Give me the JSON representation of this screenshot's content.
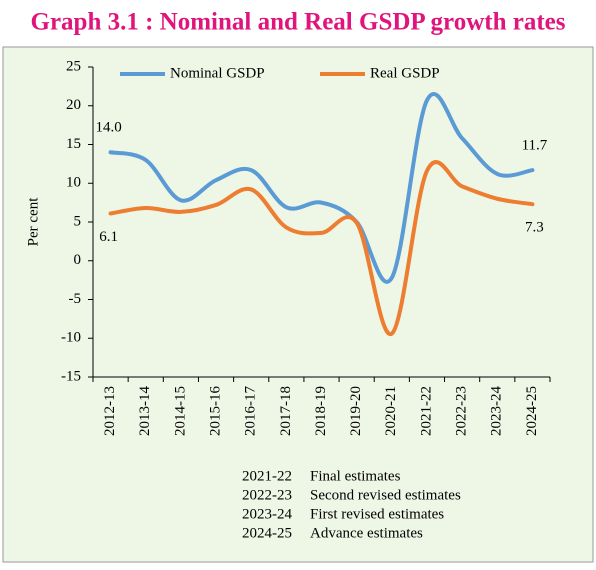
{
  "chart_data": {
    "type": "line",
    "title": "Graph 3.1 : Nominal and Real GSDP growth rates",
    "ylabel": "Per cent",
    "categories": [
      "2012-13",
      "2013-14",
      "2014-15",
      "2015-16",
      "2016-17",
      "2017-18",
      "2018-19",
      "2019-20",
      "2020-21",
      "2021-22",
      "2022-23",
      "2023-24",
      "2024-25"
    ],
    "series": [
      {
        "name": "Nominal GSDP",
        "color": "#5b9bd5",
        "values": [
          14.0,
          13.0,
          7.8,
          10.4,
          11.7,
          6.9,
          7.5,
          5.0,
          -2.2,
          20.7,
          15.8,
          11.2,
          11.7
        ],
        "value_labels": [
          "14.0",
          null,
          null,
          null,
          null,
          null,
          null,
          null,
          null,
          null,
          null,
          null,
          "11.7"
        ]
      },
      {
        "name": "Real GSDP",
        "color": "#ed7d31",
        "values": [
          6.1,
          6.8,
          6.3,
          7.2,
          9.2,
          4.3,
          3.6,
          4.9,
          -9.4,
          11.6,
          9.6,
          8.0,
          7.3
        ],
        "value_labels": [
          "6.1",
          null,
          null,
          null,
          null,
          null,
          null,
          null,
          null,
          null,
          null,
          null,
          "7.3"
        ]
      }
    ],
    "ylim": [
      -15,
      25
    ],
    "yticks": [
      -15,
      -10,
      -5,
      0,
      5,
      10,
      15,
      20,
      25
    ],
    "legend": "top",
    "notes": [
      {
        "period": "2021-22",
        "text": "Final estimates"
      },
      {
        "period": "2022-23",
        "text": "Second revised estimates"
      },
      {
        "period": "2023-24",
        "text": "First revised estimates"
      },
      {
        "period": "2024-25",
        "text": "Advance estimates"
      }
    ]
  }
}
